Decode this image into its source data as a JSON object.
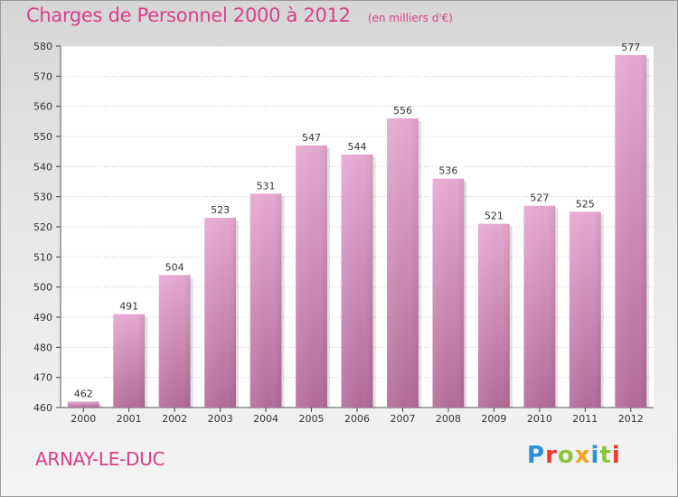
{
  "title": "Charges de Personnel 2000 à 2012",
  "unit": "(en milliers d'€)",
  "place": "ARNAY-LE-DUC",
  "brand": "Proxiti",
  "chart_data": {
    "type": "bar",
    "categories": [
      "2000",
      "2001",
      "2002",
      "2003",
      "2004",
      "2005",
      "2006",
      "2007",
      "2008",
      "2009",
      "2010",
      "2011",
      "2012"
    ],
    "values": [
      462,
      491,
      504,
      523,
      531,
      547,
      544,
      556,
      536,
      521,
      527,
      525,
      577
    ],
    "data_labels": [
      "462",
      "491",
      "504",
      "523",
      "531",
      "547",
      "544",
      "556",
      "536",
      "521",
      "527",
      "525",
      "577"
    ],
    "ylim": [
      460,
      580
    ],
    "yticks": [
      460,
      470,
      480,
      490,
      500,
      510,
      520,
      530,
      540,
      550,
      560,
      570,
      580
    ],
    "ytick_labels": [
      "460",
      "470",
      "480",
      "490",
      "500",
      "510",
      "520",
      "530",
      "540",
      "550",
      "560",
      "570",
      "580"
    ],
    "grid": true,
    "bar_color_top": "#e6a8cf",
    "bar_color_bottom": "#b26b98"
  },
  "brand_colors": [
    "#2a8fd6",
    "#e8392f",
    "#8cc63f",
    "#f4a41c",
    "#2a8fd6",
    "#8cc63f",
    "#e8392f"
  ]
}
